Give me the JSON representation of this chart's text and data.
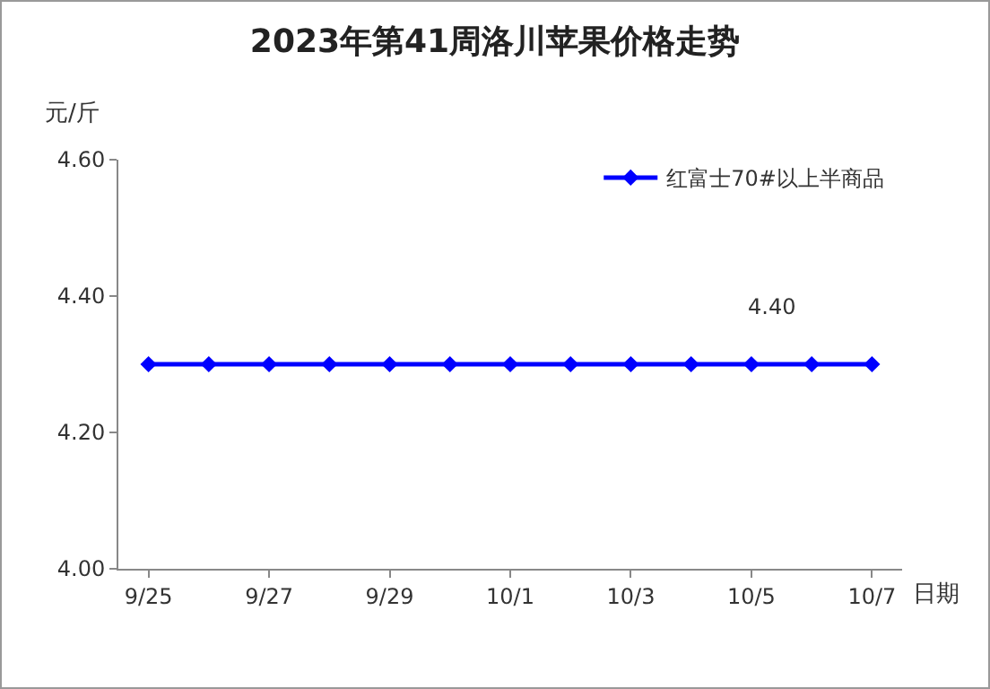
{
  "chart_data": {
    "type": "line",
    "title": "2023年第41周洛川苹果价格走势",
    "ylabel": "元/斤",
    "xlabel": "日期",
    "categories": [
      "9/25",
      null,
      "9/27",
      null,
      "9/29",
      null,
      "10/1",
      null,
      "10/3",
      null,
      "10/5",
      null,
      "10/7"
    ],
    "series": [
      {
        "name": "红富士70#以上半商品",
        "color": "#0000ff",
        "values": [
          4.3,
          4.3,
          4.3,
          4.3,
          4.3,
          4.3,
          4.3,
          4.3,
          4.3,
          4.3,
          4.3,
          4.3,
          4.3
        ]
      }
    ],
    "annotations": [
      "4.40"
    ],
    "ylim": [
      4.0,
      4.6
    ],
    "yticks": [
      {
        "value": 4.0,
        "label": "4.00"
      },
      {
        "value": 4.2,
        "label": "4.20"
      },
      {
        "value": 4.4,
        "label": "4.40"
      },
      {
        "value": 4.6,
        "label": "4.60"
      }
    ],
    "grid": false,
    "legend": "top right",
    "marker": "diamond",
    "line_style": "solid"
  }
}
